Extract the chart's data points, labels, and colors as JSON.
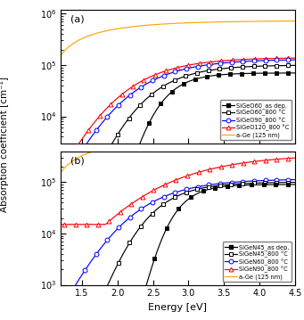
{
  "xlim": [
    1.2,
    4.5
  ],
  "ylim_a": [
    3000,
    1200000
  ],
  "ylim_b": [
    1000,
    400000
  ],
  "xlabel": "Energy [eV]",
  "ylabel": "Absorption coefficient [cm⁻¹]",
  "panel_a_label": "(a)",
  "panel_b_label": "(b)",
  "xticks": [
    1.5,
    2.0,
    2.5,
    3.0,
    3.5,
    4.0,
    4.5
  ],
  "colors": {
    "black": "#000000",
    "blue": "#0000ff",
    "red": "#ff0000",
    "orange": "#ffa500"
  },
  "legend_a": [
    "SiGeO60_as dep.",
    "SiGeO60_800 °C",
    "SiGeO90_800 °C",
    "SiGeO120_800 °C",
    "a-Ge (125 nm)"
  ],
  "legend_b": [
    "SiGeN45_as dep.",
    "SiGeN45_800 °C",
    "SiGeN60_800 °C",
    "SiGeN90_800 °C",
    "a-Ge (125 nm)"
  ]
}
